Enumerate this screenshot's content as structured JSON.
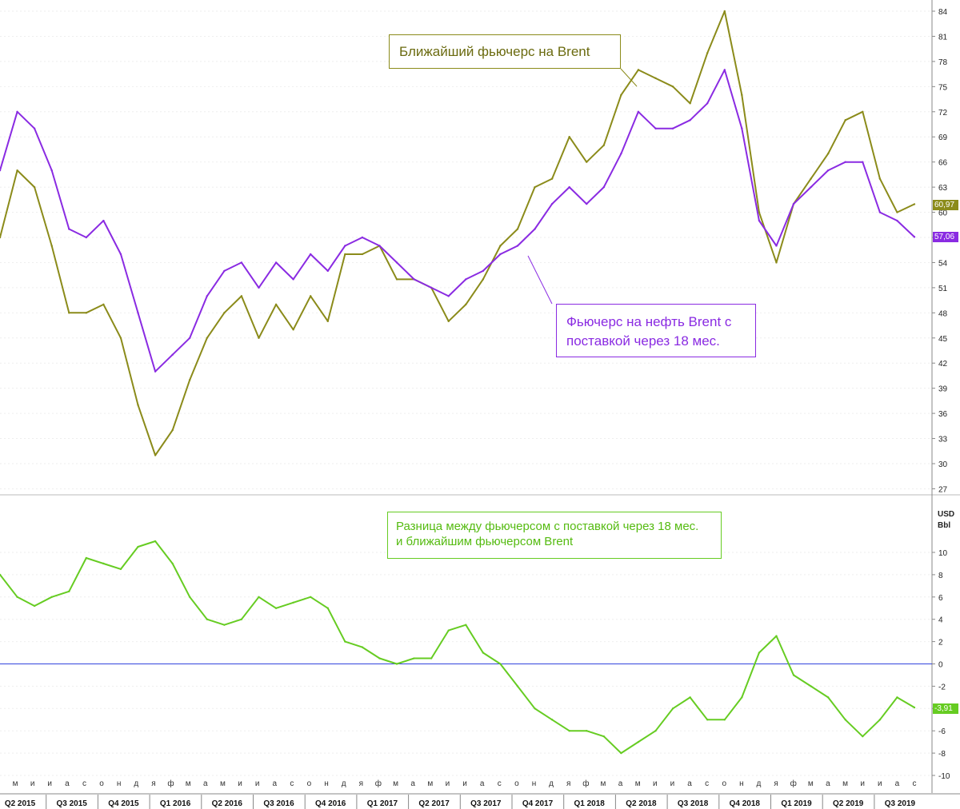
{
  "colors": {
    "brent_front": "#8b8b1a",
    "brent_18m": "#8a2be2",
    "spread": "#66cc22",
    "zero_line": "#3344dd"
  },
  "annotations": {
    "front_label": "Ближайший фьючерс на Brent",
    "m18_label_line1": "Фьючерс на нефть Brent с",
    "m18_label_line2": "поставкой через 18 мес.",
    "spread_label_line1": "Разница между фьючерсом с поставкой через 18 мес.",
    "spread_label_line2": "и  ближайшим фьючерсом Brent"
  },
  "last_values": {
    "front": "60,97",
    "m18": "57,06",
    "spread": "-3,91"
  },
  "chart_data": [
    {
      "type": "line",
      "ylabel": "",
      "ylim": [
        25.5,
        85.5
      ],
      "yticks": [
        "84",
        "81",
        "78",
        "75",
        "72",
        "69",
        "66",
        "63",
        "60",
        "57",
        "54",
        "51",
        "48",
        "45",
        "42",
        "39",
        "36",
        "33",
        "30",
        "27"
      ],
      "x": [
        "2015-04",
        "2015-05",
        "2015-06",
        "2015-07",
        "2015-08",
        "2015-09",
        "2015-10",
        "2015-11",
        "2015-12",
        "2016-01",
        "2016-02",
        "2016-03",
        "2016-04",
        "2016-05",
        "2016-06",
        "2016-07",
        "2016-08",
        "2016-09",
        "2016-10",
        "2016-11",
        "2016-12",
        "2017-01",
        "2017-02",
        "2017-03",
        "2017-04",
        "2017-05",
        "2017-06",
        "2017-07",
        "2017-08",
        "2017-09",
        "2017-10",
        "2017-11",
        "2017-12",
        "2018-01",
        "2018-02",
        "2018-03",
        "2018-04",
        "2018-05",
        "2018-06",
        "2018-07",
        "2018-08",
        "2018-09",
        "2018-10",
        "2018-11",
        "2018-12",
        "2019-01",
        "2019-02",
        "2019-03",
        "2019-04",
        "2019-05",
        "2019-06",
        "2019-07",
        "2019-08",
        "2019-09"
      ],
      "series": [
        {
          "name": "Ближайший фьючерс на Brent",
          "values": [
            57,
            65,
            63,
            56,
            48,
            48,
            49,
            45,
            37,
            31,
            34,
            40,
            45,
            48,
            50,
            45,
            49,
            46,
            50,
            47,
            55,
            55,
            56,
            52,
            52,
            51,
            47,
            49,
            52,
            56,
            58,
            63,
            64,
            69,
            66,
            68,
            74,
            77,
            76,
            75,
            73,
            79,
            84,
            74,
            60,
            54,
            61,
            64,
            67,
            71,
            72,
            64,
            60,
            60.97
          ]
        },
        {
          "name": "Фьючерс на нефть Brent с поставкой через 18 мес.",
          "values": [
            65,
            72,
            70,
            65,
            58,
            57,
            59,
            55,
            48,
            41,
            43,
            45,
            50,
            53,
            54,
            51,
            54,
            52,
            55,
            53,
            56,
            57,
            56,
            54,
            52,
            51,
            50,
            52,
            53,
            55,
            56,
            58,
            61,
            63,
            61,
            63,
            67,
            72,
            70,
            70,
            71,
            73,
            77,
            70,
            59,
            56,
            61,
            63,
            65,
            66,
            66,
            60,
            59,
            57.06
          ]
        }
      ]
    },
    {
      "type": "line",
      "ylabel": "USD Bbl",
      "ylim": [
        -11,
        12.5
      ],
      "yticks": [
        "10",
        "8",
        "6",
        "4",
        "2",
        "0",
        "-2",
        "-4",
        "-6",
        "-8",
        "-10"
      ],
      "x": [
        "2015-04",
        "2015-05",
        "2015-06",
        "2015-07",
        "2015-08",
        "2015-09",
        "2015-10",
        "2015-11",
        "2015-12",
        "2016-01",
        "2016-02",
        "2016-03",
        "2016-04",
        "2016-05",
        "2016-06",
        "2016-07",
        "2016-08",
        "2016-09",
        "2016-10",
        "2016-11",
        "2016-12",
        "2017-01",
        "2017-02",
        "2017-03",
        "2017-04",
        "2017-05",
        "2017-06",
        "2017-07",
        "2017-08",
        "2017-09",
        "2017-10",
        "2017-11",
        "2017-12",
        "2018-01",
        "2018-02",
        "2018-03",
        "2018-04",
        "2018-05",
        "2018-06",
        "2018-07",
        "2018-08",
        "2018-09",
        "2018-10",
        "2018-11",
        "2018-12",
        "2019-01",
        "2019-02",
        "2019-03",
        "2019-04",
        "2019-05",
        "2019-06",
        "2019-07",
        "2019-08",
        "2019-09"
      ],
      "series": [
        {
          "name": "Разница между фьючерсом с поставкой через 18 мес. и  ближайшим фьючерсом Brent",
          "values": [
            8,
            6,
            5.2,
            6,
            6.5,
            9.5,
            9,
            8.5,
            10.5,
            11,
            9,
            6,
            4,
            3.5,
            4,
            6,
            5,
            5.5,
            6,
            5,
            2,
            1.5,
            0.5,
            0,
            0.5,
            0.5,
            3,
            3.5,
            1,
            0,
            -2,
            -4,
            -5,
            -6,
            -6,
            -6.5,
            -8,
            -7,
            -6,
            -4,
            -3,
            -5,
            -5,
            -3,
            1,
            2.5,
            -1,
            -2,
            -3,
            -5,
            -6.5,
            -5,
            -3,
            -3.91
          ]
        }
      ],
      "reference_line": 0
    }
  ],
  "x_axis": {
    "months": [
      "м",
      "и",
      "и",
      "а",
      "с",
      "о",
      "н",
      "д",
      "я",
      "ф",
      "м",
      "а",
      "м",
      "и",
      "и",
      "а",
      "с",
      "о",
      "н",
      "д",
      "я",
      "ф",
      "м",
      "а",
      "м",
      "и",
      "и",
      "а",
      "с",
      "о",
      "н",
      "д",
      "я",
      "ф",
      "м",
      "а",
      "м",
      "и",
      "и",
      "а",
      "с",
      "о",
      "н",
      "д",
      "я",
      "ф",
      "м",
      "а",
      "м",
      "и",
      "и",
      "а",
      "с"
    ],
    "quarters": [
      "Q2 2015",
      "Q3 2015",
      "Q4 2015",
      "Q1 2016",
      "Q2 2016",
      "Q3 2016",
      "Q4 2016",
      "Q1 2017",
      "Q2 2017",
      "Q3 2017",
      "Q4 2017",
      "Q1 2018",
      "Q2 2018",
      "Q3 2018",
      "Q4 2018",
      "Q1 2019",
      "Q2 2019",
      "Q3 2019"
    ]
  }
}
